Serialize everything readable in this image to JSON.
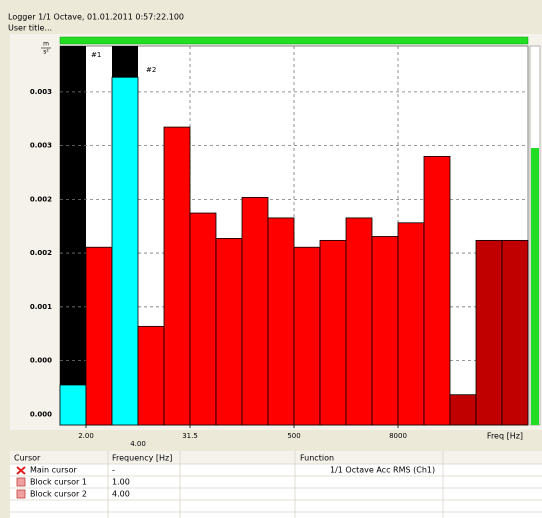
{
  "chart_data": {
    "type": "bar",
    "title": "Logger 1/1 Octave, 01.01.2011 0:57:22.100",
    "subtitle": "User title...",
    "y_unit": {
      "numerator": "m",
      "denominator": "s²"
    },
    "x_label": "Freq [Hz]",
    "xtick_labels": [
      "2.00",
      "31.5",
      "500",
      "8000"
    ],
    "cursors": [
      {
        "name": "#1"
      },
      {
        "name": "#2",
        "frequency": "4.00"
      }
    ],
    "values": [
      0.0002,
      0.00161,
      0.00335,
      0.0008,
      0.00284,
      0.00196,
      0.0017,
      0.00212,
      0.00191,
      0.00161,
      0.00168,
      0.00191,
      0.00172,
      0.00186,
      0.00254,
      0.0001,
      0.00168,
      0.00168
    ],
    "colors": [
      "#00ffff",
      "#ff0000",
      "#00ffff",
      "#ff0000",
      "#ff0000",
      "#ff0000",
      "#ff0000",
      "#ff0000",
      "#ff0000",
      "#ff0000",
      "#ff0000",
      "#ff0000",
      "#ff0000",
      "#ff0000",
      "#ff0000",
      "#c00000",
      "#c00000",
      "#c00000"
    ],
    "ylim": [
      -0.00021,
      0.00367
    ],
    "yticks": [
      {
        "value": -0.0001,
        "label": "0.000"
      },
      {
        "value": 0.00045,
        "label": "0.000"
      },
      {
        "value": 0.001,
        "label": "0.001"
      },
      {
        "value": 0.00155,
        "label": "0.002"
      },
      {
        "value": 0.0021,
        "label": "0.002"
      },
      {
        "value": 0.00265,
        "label": "0.003"
      },
      {
        "value": 0.0032,
        "label": "0.003"
      }
    ],
    "grid": true
  },
  "table": {
    "left": {
      "headers": [
        "Cursor",
        "Frequency [Hz]"
      ],
      "rows": [
        [
          "Main cursor",
          "-"
        ],
        [
          "Block cursor 1",
          "1.00"
        ],
        [
          "Block cursor 2",
          "4.00"
        ]
      ]
    },
    "right": {
      "header": "Function",
      "rows": [
        [
          "1/1 Octave Acc RMS (Ch1)"
        ]
      ]
    }
  }
}
